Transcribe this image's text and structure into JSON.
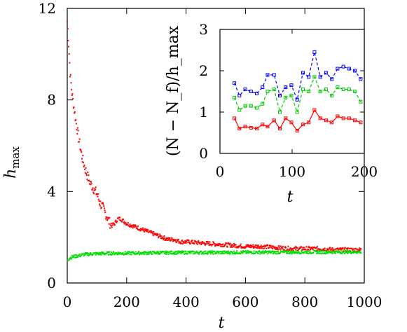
{
  "chart_data": [
    {
      "type": "scatter",
      "title": "",
      "xlabel": "t",
      "ylabel": {
        "base": "h",
        "sub": "max"
      },
      "xlim": [
        0,
        1000
      ],
      "ylim": [
        0,
        12
      ],
      "xticks": [
        0,
        200,
        400,
        600,
        800,
        1000
      ],
      "yticks": [
        0,
        4,
        8,
        12
      ],
      "xtick_labels": [
        "0",
        "200",
        "400",
        "600",
        "800",
        "1000"
      ],
      "ytick_labels": [
        "0",
        "4",
        "8",
        "12"
      ],
      "grid": false,
      "legend": "none",
      "series": [
        {
          "color": "#ff0000",
          "points": [
            [
              0,
              11.4
            ],
            [
              5,
              10.4
            ],
            [
              10,
              9.1
            ],
            [
              15,
              8.4
            ],
            [
              20,
              7.9
            ],
            [
              30,
              7.0
            ],
            [
              40,
              6.2
            ],
            [
              50,
              5.5
            ],
            [
              60,
              5.0
            ],
            [
              70,
              4.6
            ],
            [
              80,
              4.3
            ],
            [
              90,
              4.1
            ],
            [
              100,
              3.9
            ],
            [
              110,
              3.5
            ],
            [
              120,
              3.3
            ],
            [
              130,
              3.0
            ],
            [
              140,
              2.7
            ],
            [
              150,
              2.5
            ],
            [
              160,
              2.6
            ],
            [
              170,
              2.8
            ],
            [
              180,
              2.8
            ],
            [
              200,
              2.6
            ],
            [
              220,
              2.5
            ],
            [
              240,
              2.4
            ],
            [
              260,
              2.3
            ],
            [
              280,
              2.2
            ],
            [
              300,
              2.1
            ],
            [
              320,
              2.0
            ],
            [
              340,
              1.9
            ],
            [
              360,
              1.9
            ],
            [
              380,
              1.8
            ],
            [
              400,
              1.8
            ],
            [
              450,
              1.75
            ],
            [
              500,
              1.7
            ],
            [
              550,
              1.65
            ],
            [
              600,
              1.6
            ],
            [
              650,
              1.6
            ],
            [
              700,
              1.55
            ],
            [
              750,
              1.5
            ],
            [
              800,
              1.5
            ],
            [
              850,
              1.5
            ],
            [
              900,
              1.45
            ],
            [
              950,
              1.45
            ],
            [
              990,
              1.45
            ]
          ]
        },
        {
          "color": "#00dd00",
          "points": [
            [
              0,
              1.0
            ],
            [
              10,
              1.1
            ],
            [
              20,
              1.15
            ],
            [
              40,
              1.2
            ],
            [
              60,
              1.25
            ],
            [
              100,
              1.28
            ],
            [
              150,
              1.3
            ],
            [
              200,
              1.3
            ],
            [
              300,
              1.32
            ],
            [
              400,
              1.33
            ],
            [
              500,
              1.33
            ],
            [
              600,
              1.34
            ],
            [
              700,
              1.34
            ],
            [
              800,
              1.35
            ],
            [
              900,
              1.35
            ],
            [
              990,
              1.36
            ]
          ]
        }
      ]
    },
    {
      "type": "line",
      "title": "",
      "xlabel": "t",
      "ylabel": "(N − N_f)/h_max",
      "xlim": [
        0,
        200
      ],
      "ylim": [
        0,
        3
      ],
      "xticks": [
        0,
        100,
        200
      ],
      "yticks": [
        0,
        1,
        2,
        3
      ],
      "xtick_labels": [
        "0",
        "100",
        "200"
      ],
      "ytick_labels": [
        "0",
        "1",
        "2",
        "3"
      ],
      "grid": false,
      "legend": "none",
      "x": [
        20,
        27,
        35,
        43,
        51,
        59,
        66,
        75,
        83,
        91,
        99,
        107,
        115,
        123,
        131,
        139,
        147,
        155,
        163,
        171,
        179,
        187,
        195
      ],
      "series": [
        {
          "color": "#ff0000",
          "dash": "solid",
          "values": [
            0.85,
            0.6,
            0.65,
            0.62,
            0.6,
            0.7,
            0.65,
            0.8,
            0.6,
            0.85,
            0.75,
            0.55,
            0.7,
            0.75,
            1.05,
            0.85,
            0.8,
            0.75,
            0.9,
            0.85,
            0.85,
            0.8,
            0.75
          ]
        },
        {
          "color": "#00cc00",
          "dash": "dashed",
          "values": [
            1.35,
            1.05,
            1.15,
            1.15,
            1.1,
            1.2,
            1.5,
            1.55,
            1.0,
            1.35,
            1.4,
            1.0,
            1.55,
            1.5,
            1.85,
            1.5,
            1.55,
            1.4,
            1.6,
            1.55,
            1.55,
            1.5,
            1.25
          ]
        },
        {
          "color": "#0000ff",
          "dash": "dashed",
          "values": [
            1.7,
            1.4,
            1.55,
            1.5,
            1.45,
            1.6,
            1.9,
            1.9,
            1.4,
            1.6,
            1.65,
            1.3,
            1.95,
            1.85,
            2.45,
            1.85,
            1.95,
            1.8,
            2.05,
            2.1,
            2.05,
            2.0,
            1.8
          ]
        }
      ]
    }
  ]
}
